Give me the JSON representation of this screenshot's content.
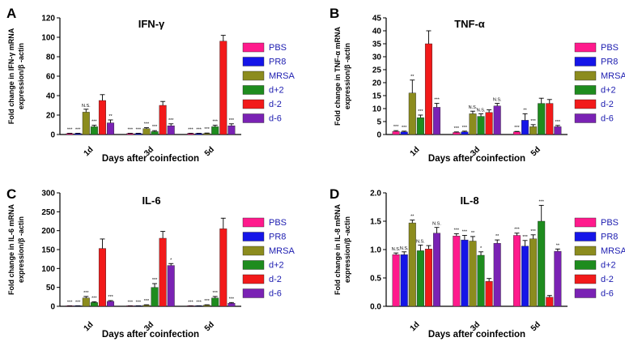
{
  "figure": {
    "categories": [
      "1d",
      "3d",
      "5d"
    ],
    "xlabel": "Days after coinfection",
    "legend": [
      "PBS",
      "PR8",
      "MRSA",
      "d+2",
      "d-2",
      "d-6"
    ],
    "series_colors": [
      "#ff1a8c",
      "#1515e8",
      "#8c8c1e",
      "#1e8c1e",
      "#f21a1a",
      "#7a22b4"
    ],
    "legend_text_color": "#1c1cb0"
  },
  "chart_data": [
    {
      "type": "bar",
      "panel": "A",
      "title": "IFN-γ",
      "ylabel": [
        "Fold change in IFN-γ  mRNA",
        "expression/β -actin"
      ],
      "xlabel": "Days after coinfection",
      "ylim": [
        0,
        120
      ],
      "yticks": [
        0,
        20,
        40,
        60,
        80,
        100,
        120
      ],
      "categories": [
        "1d",
        "3d",
        "5d"
      ],
      "series": [
        {
          "name": "PBS",
          "values": [
            1,
            1,
            1
          ],
          "errors": [
            0.3,
            0.3,
            0.3
          ],
          "labels": [
            "***",
            "***",
            "***"
          ]
        },
        {
          "name": "PR8",
          "values": [
            1,
            1,
            1
          ],
          "errors": [
            0.3,
            0.3,
            0.3
          ],
          "labels": [
            "***",
            "***",
            "***"
          ]
        },
        {
          "name": "MRSA",
          "values": [
            23,
            6,
            1
          ],
          "errors": [
            3,
            1,
            0.5
          ],
          "labels": [
            "N.S.",
            "***",
            "***"
          ]
        },
        {
          "name": "d+2",
          "values": [
            8,
            3,
            8
          ],
          "errors": [
            1.5,
            1,
            1.5
          ],
          "labels": [
            "***",
            "***",
            "***"
          ]
        },
        {
          "name": "d-2",
          "values": [
            35,
            30,
            96
          ],
          "errors": [
            6,
            4,
            6
          ],
          "labels": [
            "",
            "",
            ""
          ]
        },
        {
          "name": "d-6",
          "values": [
            12,
            9,
            9
          ],
          "errors": [
            3,
            2,
            2
          ],
          "labels": [
            "**",
            "***",
            "***"
          ]
        }
      ]
    },
    {
      "type": "bar",
      "panel": "B",
      "title": "TNF-α",
      "ylabel": [
        "Fold change in TNF-α  mRNA",
        "expression/β -actin"
      ],
      "xlabel": "Days after coinfection",
      "ylim": [
        0,
        45
      ],
      "yticks": [
        0,
        5,
        10,
        15,
        20,
        25,
        30,
        35,
        40,
        45
      ],
      "categories": [
        "1d",
        "3d",
        "5d"
      ],
      "series": [
        {
          "name": "PBS",
          "values": [
            1.2,
            0.8,
            1
          ],
          "errors": [
            0.3,
            0.2,
            0.2
          ],
          "labels": [
            "***",
            "***",
            "***"
          ]
        },
        {
          "name": "PR8",
          "values": [
            1,
            1,
            5.5
          ],
          "errors": [
            0.3,
            0.3,
            2.5
          ],
          "labels": [
            "***",
            "***",
            "**"
          ]
        },
        {
          "name": "MRSA",
          "values": [
            16,
            8,
            3
          ],
          "errors": [
            5,
            1,
            0.8
          ],
          "labels": [
            "**",
            "N.S.",
            "***"
          ]
        },
        {
          "name": "d+2",
          "values": [
            6.5,
            7,
            12
          ],
          "errors": [
            1,
            1,
            2
          ],
          "labels": [
            "***",
            "N.S.",
            ""
          ]
        },
        {
          "name": "d-2",
          "values": [
            35,
            8.5,
            12
          ],
          "errors": [
            5,
            1,
            1.5
          ],
          "labels": [
            "",
            "",
            ""
          ]
        },
        {
          "name": "d-6",
          "values": [
            10.5,
            11,
            3
          ],
          "errors": [
            1.5,
            1,
            0.5
          ],
          "labels": [
            "***",
            "N.S.",
            "***"
          ]
        }
      ]
    },
    {
      "type": "bar",
      "panel": "C",
      "title": "IL-6",
      "ylabel": [
        "Fold change in IL-6 mRNA",
        "expression/β -actin"
      ],
      "xlabel": "Days after coinfection",
      "ylim": [
        0,
        300
      ],
      "yticks": [
        0,
        50,
        100,
        150,
        200,
        250,
        300
      ],
      "categories": [
        "1d",
        "3d",
        "5d"
      ],
      "series": [
        {
          "name": "PBS",
          "values": [
            1,
            1,
            1
          ],
          "errors": [
            0.5,
            0.5,
            0.5
          ],
          "labels": [
            "***",
            "***",
            "***"
          ]
        },
        {
          "name": "PR8",
          "values": [
            1,
            1,
            1
          ],
          "errors": [
            0.5,
            0.5,
            0.5
          ],
          "labels": [
            "***",
            "***",
            "***"
          ]
        },
        {
          "name": "MRSA",
          "values": [
            22,
            3,
            3
          ],
          "errors": [
            4,
            1,
            1
          ],
          "labels": [
            "***",
            "***",
            "***"
          ]
        },
        {
          "name": "d+2",
          "values": [
            10,
            50,
            22
          ],
          "errors": [
            2,
            10,
            4
          ],
          "labels": [
            "***",
            "***",
            "***"
          ]
        },
        {
          "name": "d-2",
          "values": [
            153,
            180,
            205
          ],
          "errors": [
            25,
            18,
            28
          ],
          "labels": [
            "",
            "",
            ""
          ]
        },
        {
          "name": "d-6",
          "values": [
            13,
            108,
            8
          ],
          "errors": [
            2,
            5,
            2
          ],
          "labels": [
            "***",
            "*",
            "***"
          ]
        }
      ]
    },
    {
      "type": "bar",
      "panel": "D",
      "title": "IL-8",
      "ylabel": [
        "Fold change in IL-8 mRNA",
        "expression/β -actin"
      ],
      "xlabel": "Days after coinfection",
      "ylim": [
        0,
        2.0
      ],
      "yticks": [
        "0.0",
        "0.5",
        "1.0",
        "1.5",
        "2.0"
      ],
      "categories": [
        "1d",
        "3d",
        "5d"
      ],
      "series": [
        {
          "name": "PBS",
          "values": [
            0.91,
            1.24,
            1.25
          ],
          "errors": [
            0.03,
            0.04,
            0.04
          ],
          "labels": [
            "N.S.",
            "***",
            "***"
          ]
        },
        {
          "name": "PR8",
          "values": [
            0.91,
            1.17,
            1.06
          ],
          "errors": [
            0.05,
            0.08,
            0.1
          ],
          "labels": [
            "N.S.",
            "***",
            "***"
          ]
        },
        {
          "name": "MRSA",
          "values": [
            1.47,
            1.15,
            1.19
          ],
          "errors": [
            0.05,
            0.08,
            0.07
          ],
          "labels": [
            "**",
            "**",
            "***"
          ]
        },
        {
          "name": "d+2",
          "values": [
            0.98,
            0.9,
            1.5
          ],
          "errors": [
            0.1,
            0.06,
            0.28
          ],
          "labels": [
            "N.S.",
            "*",
            "***"
          ]
        },
        {
          "name": "d-2",
          "values": [
            1.01,
            0.44,
            0.16
          ],
          "errors": [
            0.06,
            0.05,
            0.03
          ],
          "labels": [
            "",
            "",
            ""
          ]
        },
        {
          "name": "d-6",
          "values": [
            1.29,
            1.11,
            0.97
          ],
          "errors": [
            0.1,
            0.06,
            0.04
          ],
          "labels": [
            "N.S.",
            "**",
            "**"
          ]
        }
      ]
    }
  ]
}
